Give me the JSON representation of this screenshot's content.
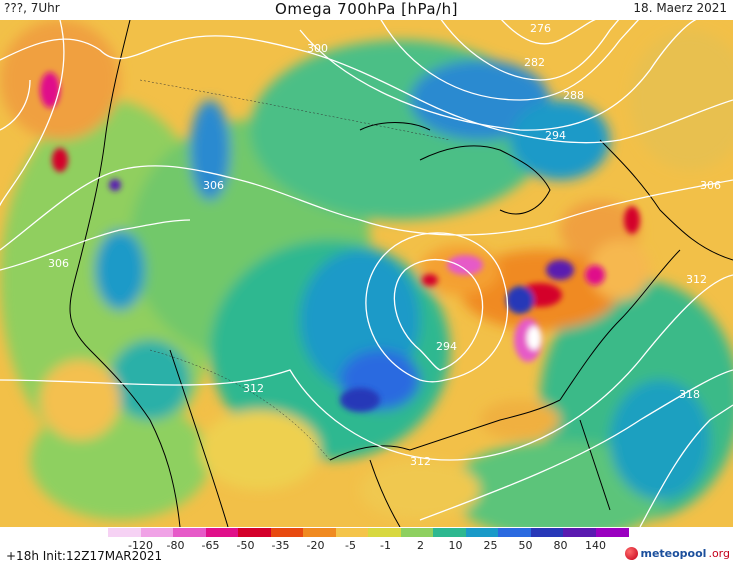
{
  "header": {
    "location_time": "???, 7Uhr",
    "title": "Omega 700hPa [hPa/h]",
    "date": "18. Maerz 2021"
  },
  "footer": {
    "forecast_info": "+18h  Init:12Z17MAR2021",
    "brand_main": "meteopool",
    "brand_suffix": ".org"
  },
  "legend": {
    "ticks": [
      "-120",
      "-80",
      "-65",
      "-50",
      "-35",
      "-20",
      "-5",
      "-1",
      "2",
      "10",
      "25",
      "50",
      "80",
      "140"
    ],
    "colors": [
      "#f6d2f4",
      "#f0a2e6",
      "#e65ac8",
      "#e0108a",
      "#d4002a",
      "#e84a10",
      "#f08a20",
      "#f4c44a",
      "#d8d840",
      "#8ed060",
      "#2eb890",
      "#1a9ac8",
      "#2a6ae0",
      "#2838b8",
      "#5a1ab0",
      "#9a00c0"
    ]
  },
  "contour_labels": [
    {
      "text": "276"
    },
    {
      "text": "282"
    },
    {
      "text": "288"
    },
    {
      "text": "294"
    },
    {
      "text": "300"
    },
    {
      "text": "306"
    },
    {
      "text": "306"
    },
    {
      "text": "306"
    },
    {
      "text": "312"
    },
    {
      "text": "312"
    },
    {
      "text": "312"
    },
    {
      "text": "318"
    },
    {
      "text": "294"
    }
  ]
}
